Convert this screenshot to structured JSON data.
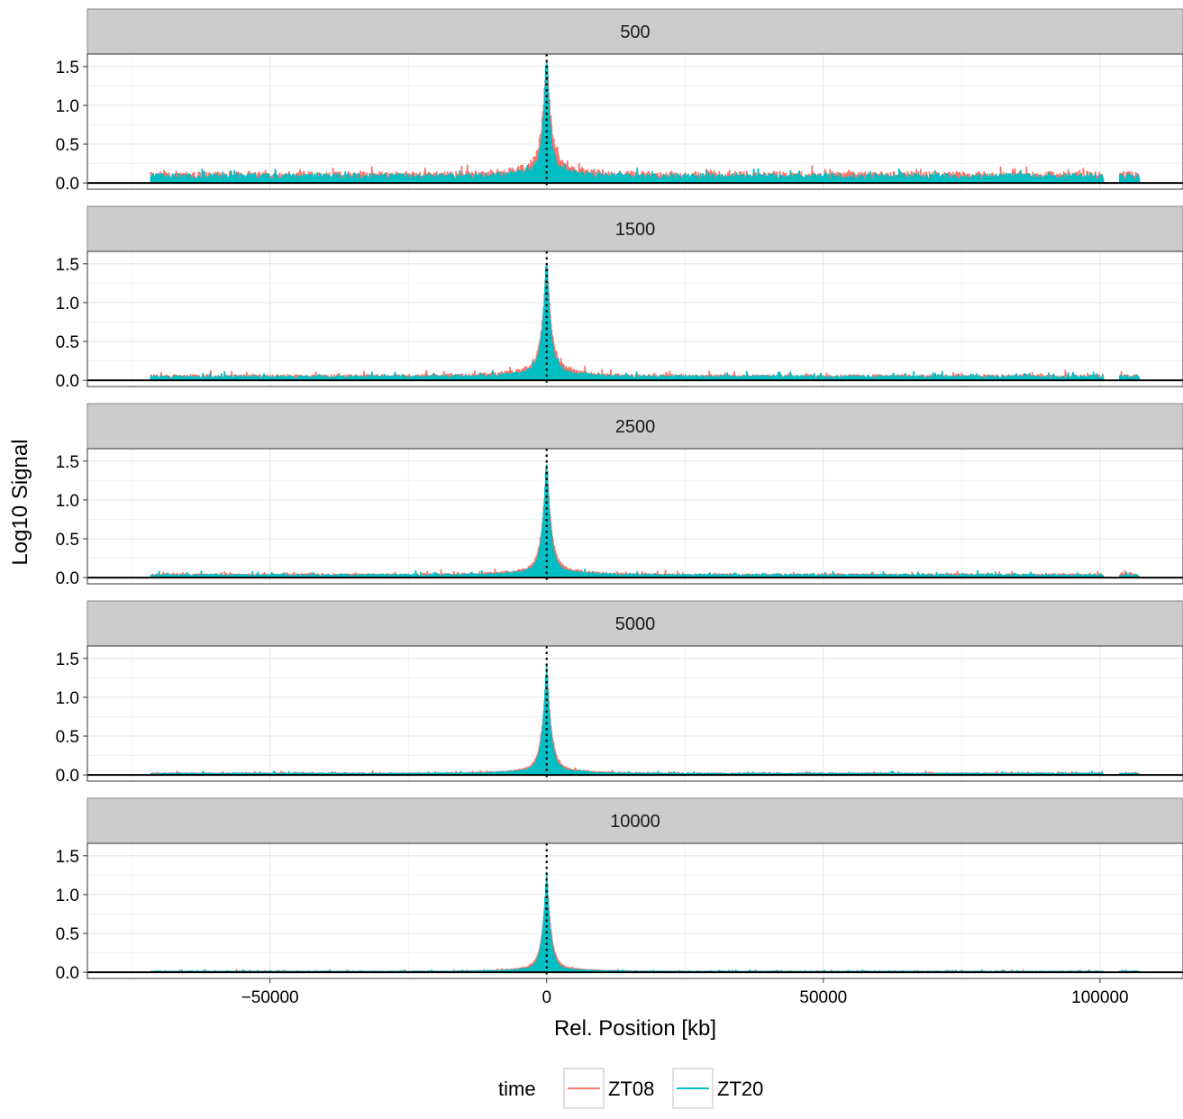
{
  "chart_data": {
    "type": "line",
    "xlabel": "Rel. Position [kb]",
    "ylabel": "Log10 Signal",
    "xlim": [
      -83000,
      115000
    ],
    "ylim": [
      -0.08,
      1.66
    ],
    "x_ticks": [
      -50000,
      0,
      50000,
      100000
    ],
    "x_tick_labels": [
      "−50000",
      "0",
      "50000",
      "100000"
    ],
    "y_ticks": [
      0.0,
      0.5,
      1.0,
      1.5
    ],
    "y_tick_labels": [
      "0.0",
      "0.5",
      "1.0",
      "1.5"
    ],
    "x_range": [
      -71500,
      107000
    ],
    "data_gap": [
      100500,
      103500
    ],
    "reference_line_x": 0,
    "hline_y": 0,
    "grid": true,
    "legend": {
      "title": "time",
      "position": "bottom",
      "entries": [
        {
          "name": "ZT08",
          "color": "#F8766D"
        },
        {
          "name": "ZT20",
          "color": "#00BFC4"
        }
      ]
    },
    "panels": [
      {
        "label": "500",
        "series": [
          {
            "name": "ZT08",
            "baseline": 0.12,
            "noise": 0.07,
            "peak": 1.5,
            "decay_kb": 2200,
            "shoulder": 0.2
          },
          {
            "name": "ZT20",
            "baseline": 0.1,
            "noise": 0.06,
            "peak": 1.55,
            "decay_kb": 1800,
            "shoulder": 0.15
          }
        ]
      },
      {
        "label": "1500",
        "series": [
          {
            "name": "ZT08",
            "baseline": 0.06,
            "noise": 0.05,
            "peak": 1.45,
            "decay_kb": 2300,
            "shoulder": 0.18
          },
          {
            "name": "ZT20",
            "baseline": 0.05,
            "noise": 0.045,
            "peak": 1.5,
            "decay_kb": 2000,
            "shoulder": 0.15
          }
        ]
      },
      {
        "label": "2500",
        "series": [
          {
            "name": "ZT08",
            "baseline": 0.04,
            "noise": 0.035,
            "peak": 1.4,
            "decay_kb": 2300,
            "shoulder": 0.15
          },
          {
            "name": "ZT20",
            "baseline": 0.035,
            "noise": 0.035,
            "peak": 1.45,
            "decay_kb": 2000,
            "shoulder": 0.13
          }
        ]
      },
      {
        "label": "5000",
        "series": [
          {
            "name": "ZT08",
            "baseline": 0.02,
            "noise": 0.02,
            "peak": 1.35,
            "decay_kb": 2300,
            "shoulder": 0.12
          },
          {
            "name": "ZT20",
            "baseline": 0.02,
            "noise": 0.02,
            "peak": 1.4,
            "decay_kb": 2000,
            "shoulder": 0.1
          }
        ]
      },
      {
        "label": "10000",
        "series": [
          {
            "name": "ZT08",
            "baseline": 0.01,
            "noise": 0.012,
            "peak": 1.22,
            "decay_kb": 2200,
            "shoulder": 0.1
          },
          {
            "name": "ZT20",
            "baseline": 0.01,
            "noise": 0.012,
            "peak": 1.28,
            "decay_kb": 1900,
            "shoulder": 0.08
          }
        ]
      }
    ]
  }
}
